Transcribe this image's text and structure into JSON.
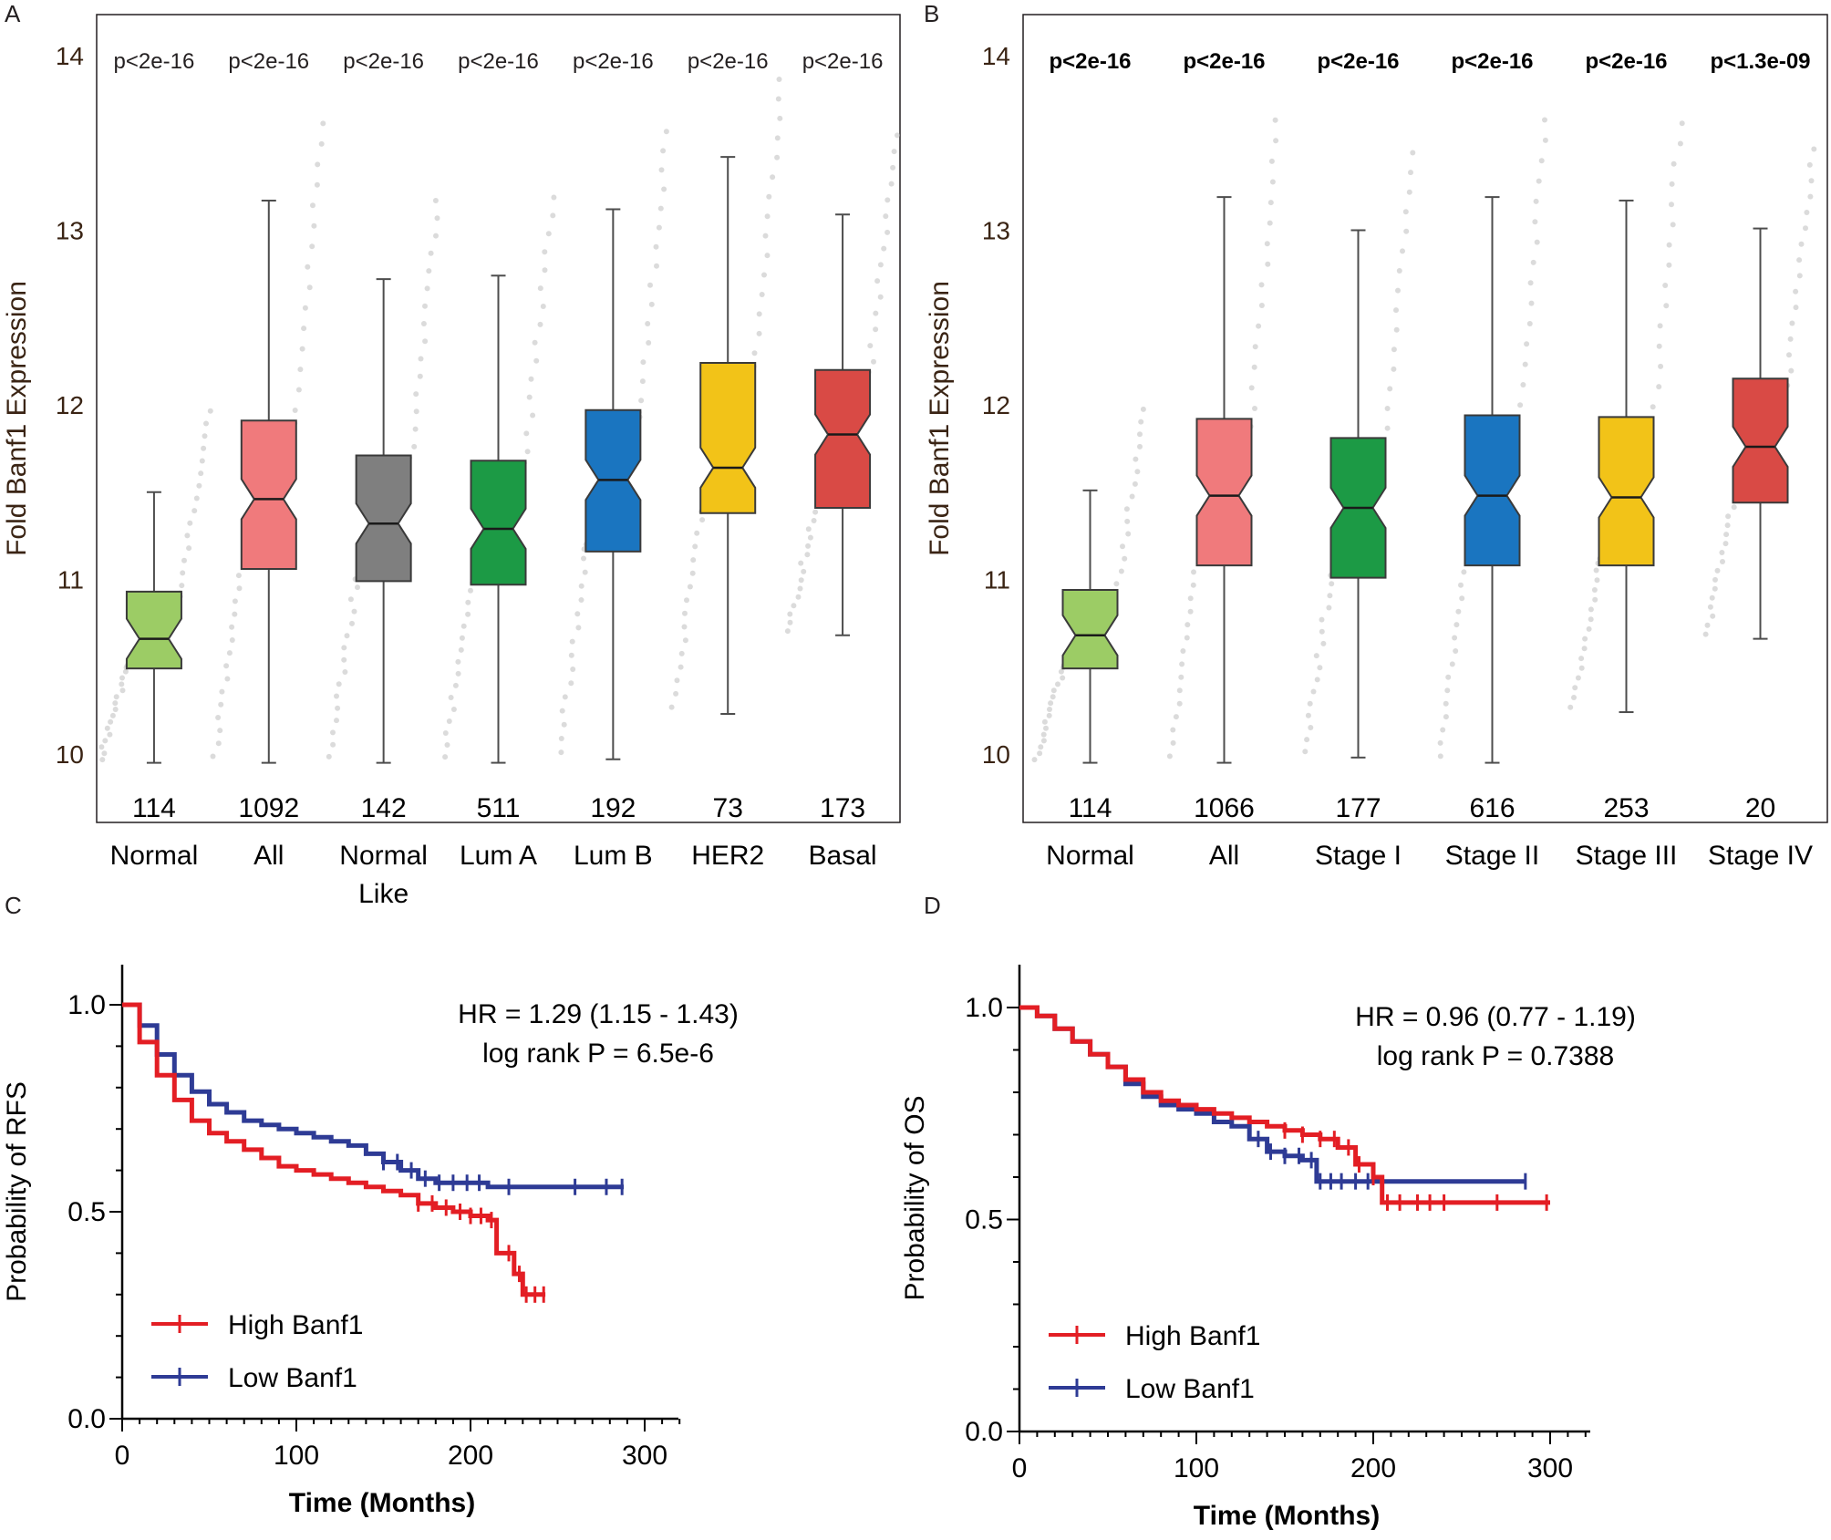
{
  "panels": {
    "A": "A",
    "B": "B",
    "C": "C",
    "D": "D"
  },
  "chart_data": [
    {
      "panel": "A",
      "type": "boxplot",
      "ylabel": "Fold Banf1 Expression",
      "ylim": [
        9.9,
        14.1
      ],
      "yticks": [
        "10",
        "11",
        "12",
        "13",
        "14"
      ],
      "grid": false,
      "groups": [
        {
          "label": "Normal",
          "label2": "",
          "n": "114",
          "p": "p<2e-16",
          "color": "#9ccc65",
          "min": 9.95,
          "q1": 10.49,
          "median": 10.66,
          "q3": 10.93,
          "max": 11.5
        },
        {
          "label": "All",
          "label2": "",
          "n": "1092",
          "p": "p<2e-16",
          "color": "#f07a7c",
          "min": 9.95,
          "q1": 11.06,
          "median": 11.46,
          "q3": 11.91,
          "max": 13.17
        },
        {
          "label": "Normal",
          "label2": "Like",
          "n": "142",
          "p": "p<2e-16",
          "color": "#7f7f7f",
          "min": 9.95,
          "q1": 10.99,
          "median": 11.32,
          "q3": 11.71,
          "max": 12.72
        },
        {
          "label": "Lum A",
          "label2": "",
          "n": "511",
          "p": "p<2e-16",
          "color": "#1c9a45",
          "min": 9.95,
          "q1": 10.97,
          "median": 11.29,
          "q3": 11.68,
          "max": 12.74
        },
        {
          "label": "Lum B",
          "label2": "",
          "n": "192",
          "p": "p<2e-16",
          "color": "#1a75c0",
          "min": 9.97,
          "q1": 11.16,
          "median": 11.57,
          "q3": 11.97,
          "max": 13.12
        },
        {
          "label": "HER2",
          "label2": "",
          "n": "73",
          "p": "p<2e-16",
          "color": "#f2c318",
          "min": 10.23,
          "q1": 11.38,
          "median": 11.64,
          "q3": 12.24,
          "max": 13.42
        },
        {
          "label": "Basal",
          "label2": "",
          "n": "173",
          "p": "p<2e-16",
          "color": "#d94a45",
          "min": 10.68,
          "q1": 11.41,
          "median": 11.83,
          "q3": 12.2,
          "max": 13.09
        }
      ]
    },
    {
      "panel": "B",
      "type": "boxplot",
      "ylabel": "Fold Banf1 Expression",
      "ylim": [
        9.9,
        14.1
      ],
      "yticks": [
        "10",
        "11",
        "12",
        "13",
        "14"
      ],
      "grid": false,
      "groups": [
        {
          "label": "Normal",
          "n": "114",
          "p": "p<2e-16",
          "color": "#9ccc65",
          "min": 9.95,
          "q1": 10.49,
          "median": 10.68,
          "q3": 10.94,
          "max": 11.51
        },
        {
          "label": "All",
          "n": "1066",
          "p": "p<2e-16",
          "color": "#f07a7c",
          "min": 9.95,
          "q1": 11.08,
          "median": 11.48,
          "q3": 11.92,
          "max": 13.19
        },
        {
          "label": "Stage I",
          "n": "177",
          "p": "p<2e-16",
          "color": "#1c9a45",
          "min": 9.98,
          "q1": 11.01,
          "median": 11.41,
          "q3": 11.81,
          "max": 13.0
        },
        {
          "label": "Stage II",
          "n": "616",
          "p": "p<2e-16",
          "color": "#1a75c0",
          "min": 9.95,
          "q1": 11.08,
          "median": 11.48,
          "q3": 11.94,
          "max": 13.19
        },
        {
          "label": "Stage III",
          "n": "253",
          "p": "p<2e-16",
          "color": "#f2c318",
          "min": 10.24,
          "q1": 11.08,
          "median": 11.47,
          "q3": 11.93,
          "max": 13.17
        },
        {
          "label": "Stage IV",
          "n": "20",
          "p": "p<1.3e-09",
          "color": "#d94a45",
          "min": 10.66,
          "q1": 11.44,
          "median": 11.76,
          "q3": 12.15,
          "max": 13.01
        }
      ]
    },
    {
      "panel": "C",
      "type": "line",
      "subtype": "kaplan-meier",
      "xlabel": "Time (Months)",
      "ylabel": "Probability of RFS",
      "xlim": [
        0,
        320
      ],
      "ylim": [
        0,
        1.05
      ],
      "xticks": [
        "0",
        "100",
        "200",
        "300"
      ],
      "yticks": [
        "0.0",
        "0.5",
        "1.0"
      ],
      "hr_text": "HR = 1.29 (1.15 - 1.43)",
      "p_text": "log rank P = 6.5e-6",
      "legend_position": "bottom-left",
      "series": [
        {
          "name": "High Banf1",
          "color": "#e31e24",
          "x": [
            0,
            10,
            20,
            30,
            40,
            50,
            60,
            70,
            80,
            90,
            100,
            110,
            120,
            130,
            140,
            150,
            160,
            170,
            180,
            190,
            200,
            210,
            215,
            218,
            225,
            230,
            235,
            243
          ],
          "y": [
            1.0,
            0.91,
            0.83,
            0.77,
            0.72,
            0.69,
            0.67,
            0.65,
            0.63,
            0.61,
            0.6,
            0.59,
            0.58,
            0.57,
            0.56,
            0.55,
            0.54,
            0.52,
            0.51,
            0.5,
            0.49,
            0.48,
            0.4,
            0.4,
            0.35,
            0.3,
            0.3,
            0.3
          ],
          "censor_x": [
            170,
            178,
            186,
            194,
            200,
            206,
            212,
            222,
            228,
            232,
            237,
            242
          ]
        },
        {
          "name": "Low Banf1",
          "color": "#2e3b95",
          "x": [
            0,
            10,
            20,
            30,
            40,
            50,
            60,
            70,
            80,
            90,
            100,
            110,
            120,
            130,
            140,
            150,
            160,
            170,
            180,
            190,
            200,
            210,
            250,
            288
          ],
          "y": [
            1.0,
            0.95,
            0.88,
            0.83,
            0.79,
            0.76,
            0.74,
            0.72,
            0.71,
            0.7,
            0.69,
            0.68,
            0.67,
            0.66,
            0.64,
            0.62,
            0.6,
            0.58,
            0.57,
            0.57,
            0.57,
            0.56,
            0.56,
            0.56
          ],
          "censor_x": [
            150,
            158,
            166,
            174,
            182,
            190,
            198,
            205,
            222,
            260,
            278,
            287
          ]
        }
      ]
    },
    {
      "panel": "D",
      "type": "line",
      "subtype": "kaplan-meier",
      "xlabel": "Time (Months)",
      "ylabel": "Probability of OS",
      "xlim": [
        0,
        320
      ],
      "ylim": [
        0,
        1.05
      ],
      "xticks": [
        "0",
        "100",
        "200",
        "300"
      ],
      "yticks": [
        "0.0",
        "0.5",
        "1.0"
      ],
      "hr_text": "HR = 0.96 (0.77 - 1.19)",
      "p_text": "log rank P = 0.7388",
      "legend_position": "bottom-left",
      "series": [
        {
          "name": "High Banf1",
          "color": "#e31e24",
          "x": [
            0,
            10,
            20,
            30,
            40,
            50,
            60,
            70,
            80,
            90,
            100,
            110,
            120,
            130,
            140,
            150,
            160,
            170,
            180,
            190,
            200,
            205,
            210,
            300
          ],
          "y": [
            1.0,
            0.98,
            0.95,
            0.92,
            0.89,
            0.86,
            0.83,
            0.8,
            0.78,
            0.77,
            0.76,
            0.75,
            0.74,
            0.73,
            0.72,
            0.71,
            0.7,
            0.69,
            0.67,
            0.63,
            0.6,
            0.54,
            0.54,
            0.54
          ],
          "censor_x": [
            150,
            160,
            170,
            178,
            186,
            192,
            200,
            208,
            215,
            225,
            232,
            240,
            270,
            298
          ]
        },
        {
          "name": "Low Banf1",
          "color": "#2e3b95",
          "x": [
            0,
            10,
            20,
            30,
            40,
            50,
            60,
            70,
            80,
            90,
            100,
            110,
            120,
            130,
            140,
            150,
            160,
            168,
            175,
            200,
            250,
            286
          ],
          "y": [
            1.0,
            0.98,
            0.95,
            0.92,
            0.89,
            0.86,
            0.82,
            0.79,
            0.77,
            0.76,
            0.75,
            0.73,
            0.72,
            0.69,
            0.66,
            0.65,
            0.64,
            0.59,
            0.59,
            0.59,
            0.59,
            0.59
          ],
          "censor_x": [
            135,
            142,
            150,
            158,
            165,
            170,
            176,
            182,
            190,
            197,
            286
          ]
        }
      ]
    }
  ]
}
